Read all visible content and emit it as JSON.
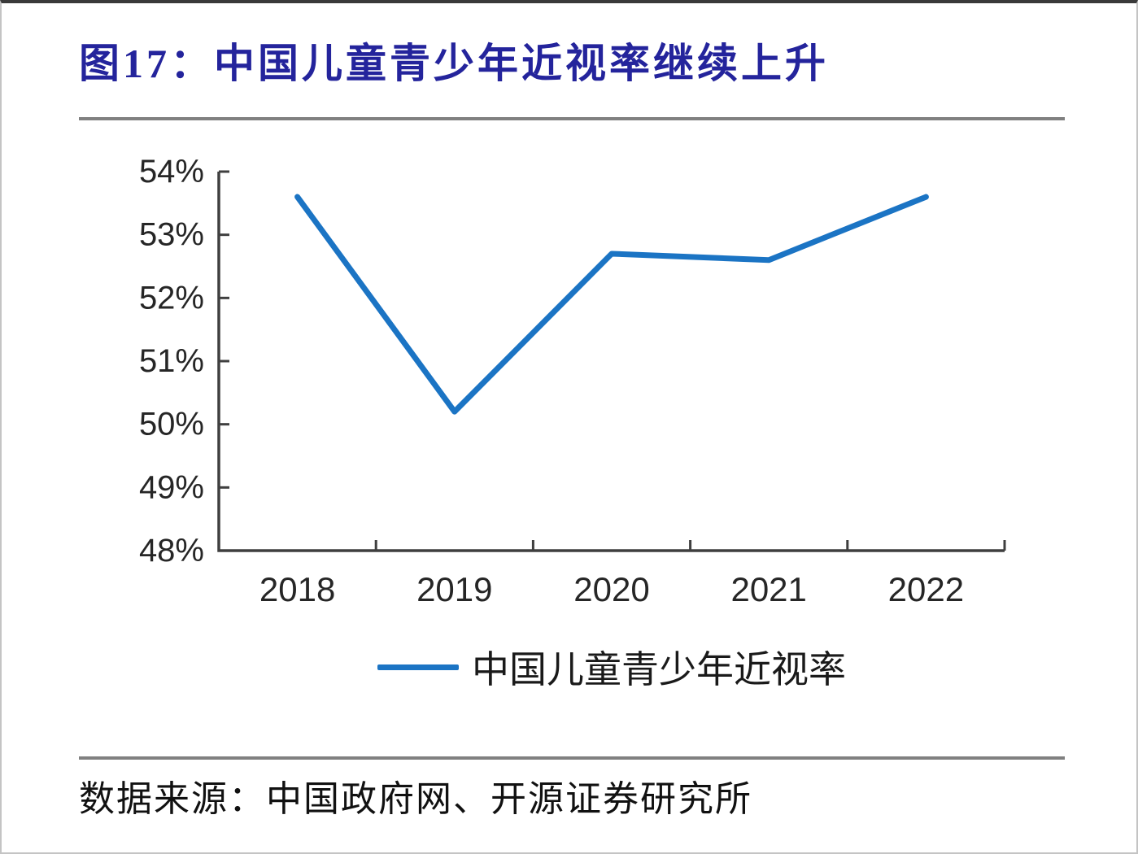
{
  "figure": {
    "title": "图17：中国儿童青少年近视率继续上升",
    "source": "数据来源：中国政府网、开源证券研究所",
    "title_color": "#24249c",
    "rule_color": "#808080"
  },
  "chart_data": {
    "type": "line",
    "title": "图17：中国儿童青少年近视率继续上升",
    "categories": [
      "2018",
      "2019",
      "2020",
      "2021",
      "2022"
    ],
    "series": [
      {
        "name": "中国儿童青少年近视率",
        "values": [
          53.6,
          50.2,
          52.7,
          52.6,
          53.6
        ]
      }
    ],
    "xlabel": "",
    "ylabel": "",
    "ylim": [
      48,
      54
    ],
    "ytick_step": 1,
    "ytick_labels": [
      "48%",
      "49%",
      "50%",
      "51%",
      "52%",
      "53%",
      "54%"
    ],
    "grid": "off",
    "legend_position": "bottom",
    "line_color": "#1b74c4",
    "axis_color": "#3f3f3f",
    "label_color": "#262626"
  }
}
